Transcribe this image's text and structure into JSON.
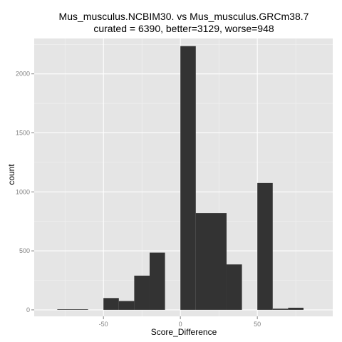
{
  "chart_data": {
    "type": "bar",
    "title": "Mus_musculus.NCBIM30. vs Mus_musculus.GRCm38.7",
    "subtitle": "curated = 6390, better=3129, worse=948",
    "xlabel": "Score_Difference",
    "ylabel": "count",
    "xlim": [
      -95,
      99
    ],
    "ylim": [
      -55,
      2300
    ],
    "x_ticks": [
      -50,
      0,
      50
    ],
    "x_tick_labels": [
      "-50",
      "0",
      "50"
    ],
    "y_ticks": [
      0,
      500,
      1000,
      1500,
      2000
    ],
    "y_tick_labels": [
      "0",
      "500",
      "1000",
      "1500",
      "2000"
    ],
    "grid": true,
    "legend": "none",
    "bins": [
      {
        "x_start": -80,
        "x_end": -60,
        "count": 5
      },
      {
        "x_start": -50,
        "x_end": -40,
        "count": 100
      },
      {
        "x_start": -40,
        "x_end": -30,
        "count": 75
      },
      {
        "x_start": -30,
        "x_end": -20,
        "count": 290
      },
      {
        "x_start": -20,
        "x_end": -10,
        "count": 485
      },
      {
        "x_start": 0,
        "x_end": 10,
        "count": 2235
      },
      {
        "x_start": 10,
        "x_end": 30,
        "count": 820
      },
      {
        "x_start": 30,
        "x_end": 40,
        "count": 385
      },
      {
        "x_start": 50,
        "x_end": 60,
        "count": 1075
      },
      {
        "x_start": 60,
        "x_end": 70,
        "count": 10
      },
      {
        "x_start": 70,
        "x_end": 80,
        "count": 18
      }
    ],
    "colors": {
      "bar": "#333333",
      "panel": "#e5e5e5",
      "grid_major": "#ffffff",
      "grid_minor": "#f2f2f2",
      "tick_text": "#7f7f7f",
      "tick_mark": "#7f7f7f"
    }
  }
}
